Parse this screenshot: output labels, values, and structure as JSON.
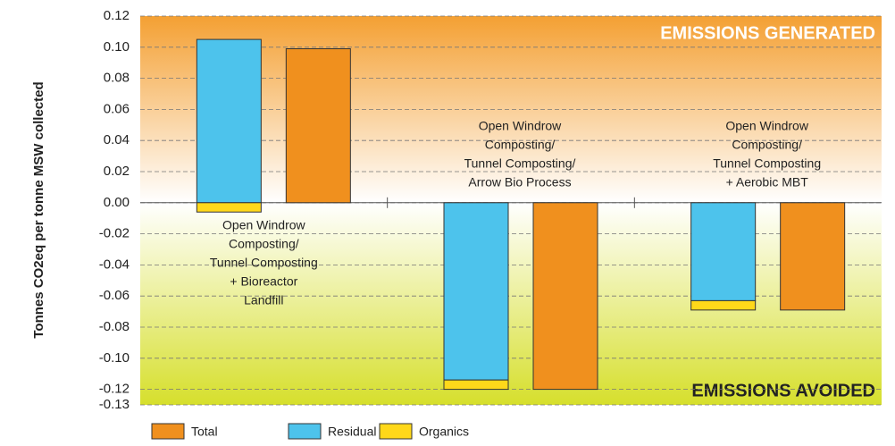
{
  "chart_data": {
    "type": "bar",
    "ylabel": "Tonnes CO2eq per tonne MSW collected",
    "annotations": [
      "EMISSIONS GENERATED",
      "EMISSIONS AVOIDED"
    ],
    "categories": [
      [
        "Open Windrow",
        "Composting/",
        "Tunnel Composting",
        "+ Bioreactor",
        "Landfill"
      ],
      [
        "Open Windrow",
        "Composting/",
        "Tunnel Composting/",
        "Arrow Bio Process"
      ],
      [
        "Open Windrow",
        "Composting/",
        "Tunnel Composting",
        "+ Aerobic MBT"
      ]
    ],
    "series": [
      {
        "name": "Total",
        "color": "#f0901e",
        "values": [
          0.099,
          -0.12,
          -0.069
        ]
      },
      {
        "name": "Residual",
        "color": "#4dc3ec",
        "values": [
          0.105,
          -0.114,
          -0.063
        ]
      },
      {
        "name": "Organics",
        "color": "#ffd81a",
        "values": [
          -0.006,
          -0.006,
          -0.006
        ]
      }
    ],
    "ylim": [
      -0.13,
      0.12
    ],
    "yticks": [
      0.12,
      {
        "value": 0.1,
        "label": "0.10"
      },
      0.08,
      0.06,
      0.04,
      0.02,
      {
        "value": 0,
        "label": "0.00"
      },
      -0.02,
      -0.04,
      -0.06,
      -0.08,
      {
        "value": -0.1,
        "label": "-0.10"
      },
      -0.12,
      -0.13
    ],
    "grid": true
  }
}
